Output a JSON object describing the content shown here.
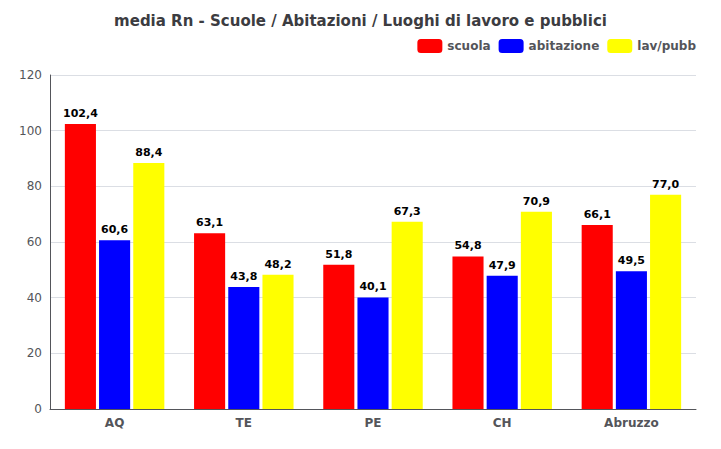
{
  "chart_data": {
    "type": "bar",
    "title": "media Rn - Scuole / Abitazioni / Luoghi di lavoro e pubblici",
    "categories": [
      "AQ",
      "TE",
      "PE",
      "CH",
      "Abruzzo"
    ],
    "series": [
      {
        "name": "scuola",
        "color": "#FF0000",
        "values": [
          102.4,
          63.1,
          51.8,
          54.8,
          66.1
        ],
        "value_labels": [
          "102,4",
          "63,1",
          "51,8",
          "54,8",
          "66,1"
        ]
      },
      {
        "name": "abitazione",
        "color": "#0000FF",
        "values": [
          60.6,
          43.8,
          40.1,
          47.9,
          49.5
        ],
        "value_labels": [
          "60,6",
          "43,8",
          "40,1",
          "47,9",
          "49,5"
        ]
      },
      {
        "name": "lav/pubb",
        "color": "#FFFF00",
        "values": [
          88.4,
          48.2,
          67.3,
          70.9,
          77.0
        ],
        "value_labels": [
          "88,4",
          "48,2",
          "67,3",
          "70,9",
          "77,0"
        ]
      }
    ],
    "ylim": [
      0,
      120
    ],
    "yticks": [
      0,
      20,
      40,
      60,
      80,
      100,
      120
    ],
    "grid": true,
    "legend": "upper right",
    "data_labels": true
  }
}
